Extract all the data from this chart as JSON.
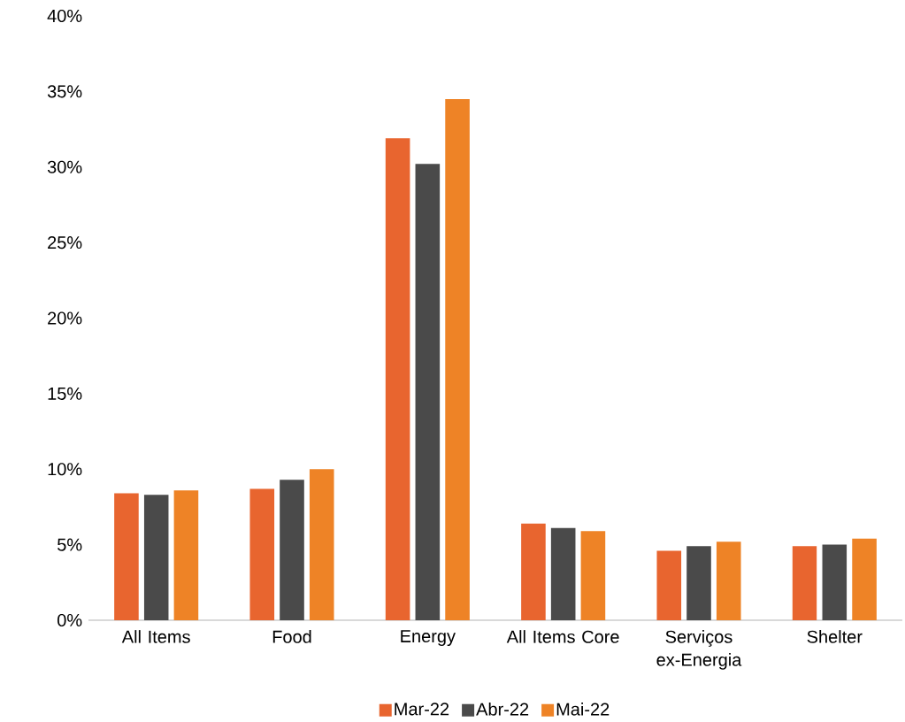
{
  "chart_data": {
    "type": "bar",
    "categories": [
      "All Items",
      "Food",
      "Energy",
      "All Items Core",
      "Serviços ex-Energia",
      "Shelter"
    ],
    "series": [
      {
        "name": "Mar-22",
        "color": "#e8652f",
        "values": [
          8.4,
          8.7,
          31.9,
          6.4,
          4.6,
          4.9
        ]
      },
      {
        "name": "Abr-22",
        "color": "#4a4a4a",
        "values": [
          8.3,
          9.3,
          30.2,
          6.1,
          4.9,
          5.0
        ]
      },
      {
        "name": "Mai-22",
        "color": "#ee8326",
        "values": [
          8.6,
          10.0,
          34.5,
          5.9,
          5.2,
          5.4
        ]
      }
    ],
    "ylim": [
      0,
      40
    ],
    "yticks": [
      {
        "value": 0,
        "label": "0%"
      },
      {
        "value": 5,
        "label": "5%"
      },
      {
        "value": 10,
        "label": "10%"
      },
      {
        "value": 15,
        "label": "15%"
      },
      {
        "value": 20,
        "label": "20%"
      },
      {
        "value": 25,
        "label": "25%"
      },
      {
        "value": 30,
        "label": "30%"
      },
      {
        "value": 35,
        "label": "35%"
      },
      {
        "value": 40,
        "label": "40%"
      }
    ],
    "legend": "bottom"
  }
}
